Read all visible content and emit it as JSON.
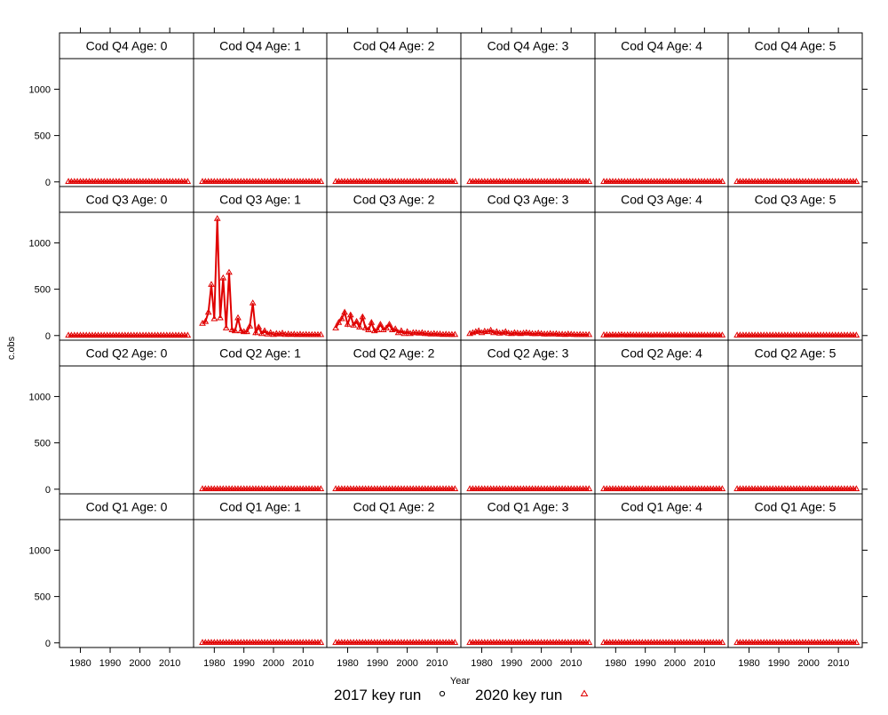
{
  "chart_data": {
    "type": "line",
    "xlabel": "Year",
    "ylabel": "c.obs",
    "xlim": [
      1973,
      2018
    ],
    "ylim": [
      -50,
      1330
    ],
    "xticks": [
      1980,
      1990,
      2000,
      2010
    ],
    "yticks": [
      0,
      500,
      1000
    ],
    "years": [
      1976,
      1977,
      1978,
      1979,
      1980,
      1981,
      1982,
      1983,
      1984,
      1985,
      1986,
      1987,
      1988,
      1989,
      1990,
      1991,
      1992,
      1993,
      1994,
      1995,
      1996,
      1997,
      1998,
      1999,
      2000,
      2001,
      2002,
      2003,
      2004,
      2005,
      2006,
      2007,
      2008,
      2009,
      2010,
      2011,
      2012,
      2013,
      2014,
      2015,
      2016
    ],
    "legend": {
      "placement": "bottom",
      "entries": [
        {
          "label": "2017 key run",
          "marker": "circle",
          "color": "#000000"
        },
        {
          "label": "2020 key run",
          "marker": "triangle",
          "color": "#e00000"
        }
      ]
    },
    "line_color": "#e00000",
    "panels": [
      {
        "title": "Cod Q4 Age: 0",
        "row": 0,
        "col": 0,
        "start_year": 1976,
        "values": [
          3,
          3,
          3,
          3,
          3,
          3,
          3,
          3,
          3,
          3,
          3,
          3,
          3,
          3,
          3,
          3,
          3,
          3,
          3,
          3,
          3,
          3,
          3,
          3,
          3,
          3,
          3,
          3,
          3,
          3,
          3,
          3,
          3,
          3,
          3,
          3,
          3,
          3,
          3,
          3,
          3
        ]
      },
      {
        "title": "Cod Q4 Age: 1",
        "row": 0,
        "col": 1,
        "start_year": 1976,
        "values": [
          3,
          3,
          3,
          3,
          3,
          3,
          3,
          3,
          3,
          3,
          3,
          3,
          3,
          3,
          3,
          3,
          3,
          3,
          3,
          3,
          3,
          3,
          3,
          3,
          3,
          3,
          3,
          3,
          3,
          3,
          3,
          3,
          3,
          3,
          3,
          3,
          3,
          3,
          3,
          3,
          3
        ]
      },
      {
        "title": "Cod Q4 Age: 2",
        "row": 0,
        "col": 2,
        "start_year": 1976,
        "values": [
          3,
          3,
          3,
          3,
          3,
          3,
          3,
          3,
          3,
          3,
          3,
          3,
          3,
          3,
          3,
          3,
          3,
          3,
          3,
          3,
          3,
          3,
          3,
          3,
          3,
          3,
          3,
          3,
          3,
          3,
          3,
          3,
          3,
          3,
          3,
          3,
          3,
          3,
          3,
          3,
          3
        ]
      },
      {
        "title": "Cod Q4 Age: 3",
        "row": 0,
        "col": 3,
        "start_year": 1976,
        "values": [
          3,
          3,
          3,
          3,
          3,
          3,
          3,
          3,
          3,
          3,
          3,
          3,
          3,
          3,
          3,
          3,
          3,
          3,
          3,
          3,
          3,
          3,
          3,
          3,
          3,
          3,
          3,
          3,
          3,
          3,
          3,
          3,
          3,
          3,
          3,
          3,
          3,
          3,
          3,
          3,
          3
        ]
      },
      {
        "title": "Cod Q4 Age: 4",
        "row": 0,
        "col": 4,
        "start_year": 1976,
        "values": [
          3,
          3,
          3,
          3,
          3,
          3,
          3,
          3,
          3,
          3,
          3,
          3,
          3,
          3,
          3,
          3,
          3,
          3,
          3,
          3,
          3,
          3,
          3,
          3,
          3,
          3,
          3,
          3,
          3,
          3,
          3,
          3,
          3,
          3,
          3,
          3,
          3,
          3,
          3,
          3,
          3
        ]
      },
      {
        "title": "Cod Q4 Age: 5",
        "row": 0,
        "col": 5,
        "start_year": 1976,
        "values": [
          3,
          3,
          3,
          3,
          3,
          3,
          3,
          3,
          3,
          3,
          3,
          3,
          3,
          3,
          3,
          3,
          3,
          3,
          3,
          3,
          3,
          3,
          3,
          3,
          3,
          3,
          3,
          3,
          3,
          3,
          3,
          3,
          3,
          3,
          3,
          3,
          3,
          3,
          3,
          3,
          3
        ]
      },
      {
        "title": "Cod Q3 Age: 0",
        "row": 1,
        "col": 0,
        "start_year": 1976,
        "values": [
          2,
          2,
          2,
          2,
          2,
          2,
          2,
          2,
          2,
          2,
          2,
          2,
          2,
          2,
          2,
          2,
          2,
          2,
          2,
          2,
          2,
          2,
          2,
          2,
          2,
          2,
          2,
          2,
          2,
          2,
          2,
          2,
          2,
          2,
          2,
          2,
          2,
          2,
          2,
          2,
          2
        ]
      },
      {
        "title": "Cod Q3 Age: 1",
        "row": 1,
        "col": 1,
        "start_year": 1976,
        "values": [
          130,
          150,
          250,
          550,
          180,
          1260,
          190,
          620,
          80,
          680,
          60,
          50,
          190,
          50,
          40,
          40,
          100,
          350,
          30,
          90,
          20,
          50,
          15,
          30,
          10,
          20,
          15,
          25,
          10,
          15,
          10,
          12,
          8,
          12,
          8,
          10,
          8,
          8,
          8,
          8,
          8
        ]
      },
      {
        "title": "Cod Q3 Age: 2",
        "row": 1,
        "col": 2,
        "start_year": 1976,
        "values": [
          80,
          140,
          180,
          250,
          120,
          220,
          110,
          150,
          90,
          200,
          80,
          60,
          140,
          50,
          60,
          120,
          60,
          80,
          120,
          60,
          70,
          30,
          50,
          20,
          40,
          20,
          30,
          30,
          25,
          30,
          20,
          20,
          15,
          20,
          15,
          15,
          10,
          12,
          10,
          10,
          10
        ]
      },
      {
        "title": "Cod Q3 Age: 3",
        "row": 1,
        "col": 3,
        "start_year": 1976,
        "values": [
          20,
          30,
          40,
          50,
          30,
          45,
          40,
          55,
          30,
          40,
          25,
          30,
          40,
          25,
          20,
          30,
          25,
          20,
          25,
          30,
          25,
          20,
          18,
          25,
          20,
          15,
          15,
          20,
          15,
          18,
          12,
          12,
          10,
          15,
          12,
          10,
          8,
          10,
          8,
          8,
          8
        ]
      },
      {
        "title": "Cod Q3 Age: 4",
        "row": 1,
        "col": 4,
        "start_year": 1976,
        "values": [
          6,
          6,
          5,
          7,
          5,
          6,
          8,
          5,
          6,
          7,
          5,
          6,
          5,
          6,
          5,
          6,
          4,
          5,
          6,
          5,
          4,
          5,
          6,
          4,
          5,
          4,
          5,
          5,
          4,
          5,
          4,
          4,
          4,
          5,
          4,
          4,
          4,
          4,
          4,
          4,
          4
        ]
      },
      {
        "title": "Cod Q3 Age: 5",
        "row": 1,
        "col": 5,
        "start_year": 1976,
        "values": [
          3,
          3,
          3,
          3,
          3,
          3,
          3,
          3,
          3,
          3,
          3,
          3,
          3,
          3,
          3,
          3,
          3,
          3,
          3,
          3,
          3,
          3,
          3,
          3,
          3,
          3,
          3,
          3,
          3,
          3,
          3,
          3,
          3,
          3,
          3,
          3,
          3,
          3,
          3,
          3,
          3
        ]
      },
      {
        "title": "Cod Q2 Age: 0",
        "row": 2,
        "col": 0,
        "start_year": 1976,
        "values": []
      },
      {
        "title": "Cod Q2 Age: 1",
        "row": 2,
        "col": 1,
        "start_year": 1976,
        "values": [
          3,
          3,
          3,
          3,
          3,
          3,
          3,
          3,
          3,
          3,
          3,
          3,
          3,
          3,
          3,
          3,
          3,
          3,
          3,
          3,
          3,
          3,
          3,
          3,
          3,
          3,
          3,
          3,
          3,
          3,
          3,
          3,
          3,
          3,
          3,
          3,
          3,
          3,
          3,
          3,
          3
        ]
      },
      {
        "title": "Cod Q2 Age: 2",
        "row": 2,
        "col": 2,
        "start_year": 1976,
        "values": [
          3,
          3,
          3,
          3,
          3,
          3,
          3,
          3,
          3,
          3,
          3,
          3,
          3,
          3,
          3,
          3,
          3,
          3,
          3,
          3,
          3,
          3,
          3,
          3,
          3,
          3,
          3,
          3,
          3,
          3,
          3,
          3,
          3,
          3,
          3,
          3,
          3,
          3,
          3,
          3,
          3
        ]
      },
      {
        "title": "Cod Q2 Age: 3",
        "row": 2,
        "col": 3,
        "start_year": 1976,
        "values": [
          3,
          3,
          3,
          3,
          3,
          3,
          3,
          3,
          3,
          3,
          3,
          3,
          3,
          3,
          3,
          3,
          3,
          3,
          3,
          3,
          3,
          3,
          3,
          3,
          3,
          3,
          3,
          3,
          3,
          3,
          3,
          3,
          3,
          3,
          3,
          3,
          3,
          3,
          3,
          3,
          3
        ]
      },
      {
        "title": "Cod Q2 Age: 4",
        "row": 2,
        "col": 4,
        "start_year": 1976,
        "values": [
          3,
          3,
          3,
          3,
          3,
          3,
          3,
          3,
          3,
          3,
          3,
          3,
          3,
          3,
          3,
          3,
          3,
          3,
          3,
          3,
          3,
          3,
          3,
          3,
          3,
          3,
          3,
          3,
          3,
          3,
          3,
          3,
          3,
          3,
          3,
          3,
          3,
          3,
          3,
          3,
          3
        ]
      },
      {
        "title": "Cod Q2 Age: 5",
        "row": 2,
        "col": 5,
        "start_year": 1976,
        "values": [
          3,
          3,
          3,
          3,
          3,
          3,
          3,
          3,
          3,
          3,
          3,
          3,
          3,
          3,
          3,
          3,
          3,
          3,
          3,
          3,
          3,
          3,
          3,
          3,
          3,
          3,
          3,
          3,
          3,
          3,
          3,
          3,
          3,
          3,
          3,
          3,
          3,
          3,
          3,
          3,
          3
        ]
      },
      {
        "title": "Cod Q1 Age: 0",
        "row": 3,
        "col": 0,
        "start_year": 1976,
        "values": []
      },
      {
        "title": "Cod Q1 Age: 1",
        "row": 3,
        "col": 1,
        "start_year": 1976,
        "values": [
          3,
          3,
          3,
          3,
          3,
          3,
          3,
          3,
          3,
          3,
          3,
          3,
          3,
          3,
          3,
          3,
          3,
          3,
          3,
          3,
          3,
          3,
          3,
          3,
          3,
          3,
          3,
          3,
          3,
          3,
          3,
          3,
          3,
          3,
          3,
          3,
          3,
          3,
          3,
          3,
          3
        ]
      },
      {
        "title": "Cod Q1 Age: 2",
        "row": 3,
        "col": 2,
        "start_year": 1976,
        "values": [
          3,
          3,
          3,
          3,
          3,
          3,
          3,
          3,
          3,
          3,
          3,
          3,
          3,
          3,
          3,
          3,
          3,
          3,
          3,
          3,
          3,
          3,
          3,
          3,
          3,
          3,
          3,
          3,
          3,
          3,
          3,
          3,
          3,
          3,
          3,
          3,
          3,
          3,
          3,
          3,
          3
        ]
      },
      {
        "title": "Cod Q1 Age: 3",
        "row": 3,
        "col": 3,
        "start_year": 1976,
        "values": [
          3,
          3,
          3,
          3,
          3,
          3,
          3,
          3,
          3,
          3,
          3,
          3,
          3,
          3,
          3,
          3,
          3,
          3,
          3,
          3,
          3,
          3,
          3,
          3,
          3,
          3,
          3,
          3,
          3,
          3,
          3,
          3,
          3,
          3,
          3,
          3,
          3,
          3,
          3,
          3,
          3
        ]
      },
      {
        "title": "Cod Q1 Age: 4",
        "row": 3,
        "col": 4,
        "start_year": 1976,
        "values": [
          3,
          3,
          3,
          3,
          3,
          3,
          3,
          3,
          3,
          3,
          3,
          3,
          3,
          3,
          3,
          3,
          3,
          3,
          3,
          3,
          3,
          3,
          3,
          3,
          3,
          3,
          3,
          3,
          3,
          3,
          3,
          3,
          3,
          3,
          3,
          3,
          3,
          3,
          3,
          3,
          3
        ]
      },
      {
        "title": "Cod Q1 Age: 5",
        "row": 3,
        "col": 5,
        "start_year": 1976,
        "values": [
          3,
          3,
          3,
          3,
          3,
          3,
          3,
          3,
          3,
          3,
          3,
          3,
          3,
          3,
          3,
          3,
          3,
          3,
          3,
          3,
          3,
          3,
          3,
          3,
          3,
          3,
          3,
          3,
          3,
          3,
          3,
          3,
          3,
          3,
          3,
          3,
          3,
          3,
          3,
          3,
          3
        ]
      }
    ]
  }
}
